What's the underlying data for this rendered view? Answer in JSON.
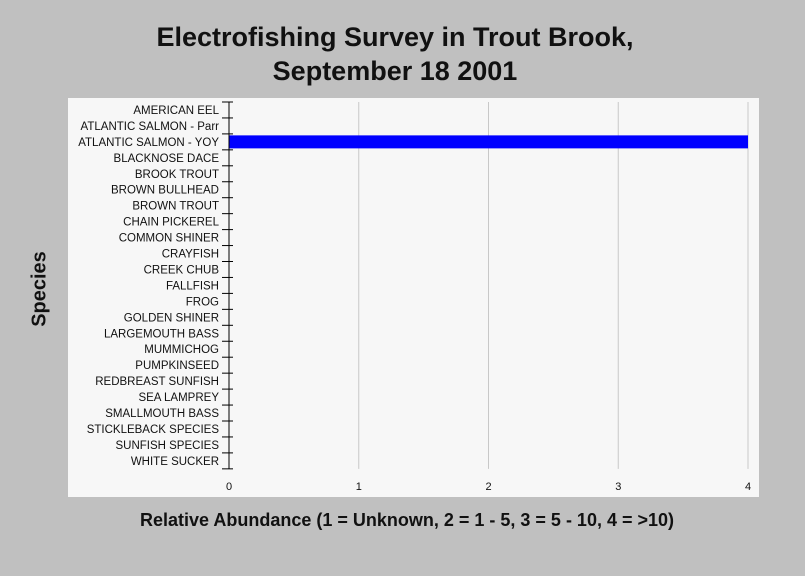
{
  "chart_data": {
    "type": "bar",
    "orientation": "horizontal",
    "title": "Electrofishing Survey in Trout Brook, September 18 2001",
    "title_lines": [
      "Electrofishing Survey in Trout Brook,",
      "September 18 2001"
    ],
    "xlabel": "Relative Abundance (1 = Unknown, 2 = 1 - 5, 3 = 5 - 10, 4 = >10)",
    "ylabel": "Species",
    "xlim": [
      0,
      4
    ],
    "xticks": [
      "0",
      "1",
      "2",
      "3",
      "4"
    ],
    "grid": "vertical",
    "categories": [
      "AMERICAN EEL",
      "ATLANTIC SALMON  - Parr",
      "ATLANTIC SALMON - YOY",
      "BLACKNOSE DACE",
      "BROOK TROUT",
      "BROWN BULLHEAD",
      "BROWN TROUT",
      "CHAIN PICKEREL",
      "COMMON SHINER",
      "CRAYFISH",
      "CREEK CHUB",
      "FALLFISH",
      "FROG",
      "GOLDEN SHINER",
      "LARGEMOUTH BASS",
      "MUMMICHOG",
      "PUMPKINSEED",
      "REDBREAST SUNFISH",
      "SEA LAMPREY",
      "SMALLMOUTH BASS",
      "STICKLEBACK SPECIES",
      "SUNFISH SPECIES",
      "WHITE SUCKER"
    ],
    "values": [
      0,
      0,
      4,
      0,
      0,
      0,
      0,
      0,
      0,
      0,
      0,
      0,
      0,
      0,
      0,
      0,
      0,
      0,
      0,
      0,
      0,
      0,
      0
    ],
    "bar_color": "#0000ff"
  }
}
